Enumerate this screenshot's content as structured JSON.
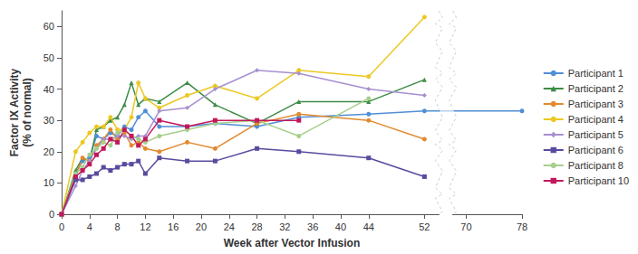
{
  "chart_data": {
    "type": "line",
    "x_label": "Week after Vector Infusion",
    "y_label": "Factor IX Activity\n(% of normal)",
    "x": [
      0,
      2,
      3,
      4,
      5,
      6,
      7,
      8,
      9,
      10,
      11,
      12,
      14,
      18,
      22,
      28,
      34,
      44,
      52,
      78
    ],
    "xlim": [
      0,
      78
    ],
    "xticks": [
      0,
      4,
      8,
      12,
      16,
      20,
      24,
      28,
      32,
      36,
      40,
      44,
      52,
      70,
      78
    ],
    "ylim": [
      0,
      65
    ],
    "yticks": [
      0,
      10,
      20,
      30,
      40,
      50,
      60
    ],
    "grid": false,
    "legend": "right",
    "series": [
      {
        "name": "Participant 1",
        "color": "#4f8fd6",
        "marker": "circle",
        "values": [
          0,
          13,
          17,
          18,
          25,
          24,
          26,
          25,
          28,
          27,
          31,
          33,
          28,
          28,
          29,
          28,
          31,
          32,
          33,
          33
        ]
      },
      {
        "name": "Participant 2",
        "color": "#3c8c45",
        "marker": "triangle",
        "values": [
          0,
          14,
          18,
          17,
          27,
          28,
          30,
          31,
          35,
          42,
          35,
          37,
          36,
          42,
          35,
          29,
          36,
          36,
          43,
          null
        ]
      },
      {
        "name": "Participant 3",
        "color": "#e3892e",
        "marker": "circle",
        "values": [
          0,
          12,
          18,
          17,
          22,
          24,
          27,
          24,
          26,
          22,
          23,
          21,
          20,
          23,
          21,
          29,
          32,
          30,
          24,
          null
        ]
      },
      {
        "name": "Participant 4",
        "color": "#ecc822",
        "marker": "circle",
        "values": [
          0,
          20,
          23,
          26,
          28,
          28,
          31,
          27,
          27,
          31,
          42,
          37,
          34,
          38,
          41,
          37,
          46,
          44,
          63,
          null
        ]
      },
      {
        "name": "Participant 5",
        "color": "#a78fd0",
        "marker": "diamond",
        "values": [
          0,
          9,
          14,
          17,
          21,
          24,
          24,
          25,
          25,
          24,
          25,
          25,
          33,
          34,
          40,
          46,
          45,
          40,
          38,
          null
        ]
      },
      {
        "name": "Participant 6",
        "color": "#5a4a9f",
        "marker": "square",
        "values": [
          0,
          11,
          11,
          12,
          13,
          15,
          14,
          15,
          16,
          16,
          17,
          13,
          18,
          17,
          17,
          21,
          20,
          18,
          12,
          null
        ]
      },
      {
        "name": "Participant 8",
        "color": "#a6cf8b",
        "marker": "circle",
        "values": [
          0,
          13,
          15,
          19,
          21,
          23,
          22,
          26,
          27,
          25,
          24,
          23,
          25,
          27,
          29,
          30,
          25,
          37,
          null,
          null
        ]
      },
      {
        "name": "Participant 10",
        "color": "#c2185b",
        "marker": "square",
        "values": [
          0,
          12,
          14,
          16,
          19,
          21,
          24,
          23,
          27,
          25,
          22,
          24,
          30,
          28,
          30,
          30,
          30,
          null,
          null,
          null
        ]
      }
    ]
  }
}
